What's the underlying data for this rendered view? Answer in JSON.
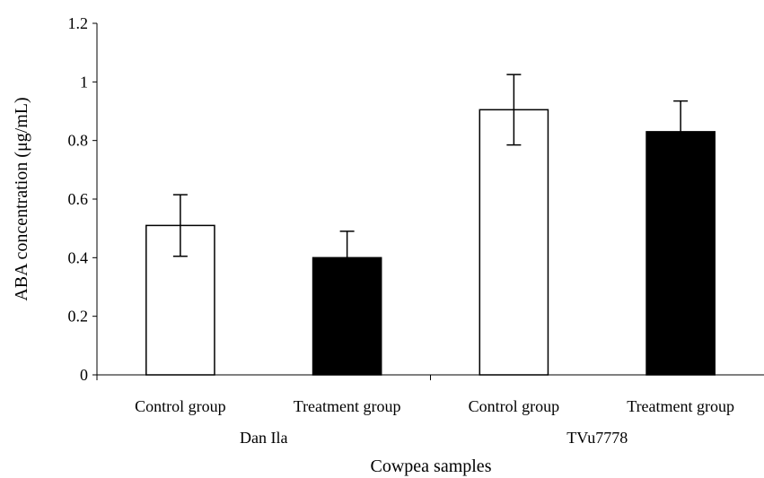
{
  "chart_data": {
    "type": "bar",
    "xlabel": "Cowpea samples",
    "ylabel": "ABA concentration (μg/mL)",
    "ylim": [
      0,
      1.2
    ],
    "yticks": [
      {
        "value": 0,
        "label": "0"
      },
      {
        "value": 0.2,
        "label": "0.2"
      },
      {
        "value": 0.4,
        "label": "0.4"
      },
      {
        "value": 0.6,
        "label": "0.6"
      },
      {
        "value": 0.8,
        "label": "0.8"
      },
      {
        "value": 1.0,
        "label": "1"
      },
      {
        "value": 1.2,
        "label": "1.2"
      }
    ],
    "groups": [
      "Dan Ila",
      "TVu7778"
    ],
    "categories": [
      "Control group",
      "Treatment group",
      "Control group",
      "Treatment group"
    ],
    "bars": [
      {
        "group": 0,
        "category": "Control group",
        "value": 0.51,
        "error": 0.105,
        "fill": "#ffffff"
      },
      {
        "group": 0,
        "category": "Treatment group",
        "value": 0.4,
        "error": 0.09,
        "fill": "#000000"
      },
      {
        "group": 1,
        "category": "Control group",
        "value": 0.905,
        "error": 0.12,
        "fill": "#ffffff"
      },
      {
        "group": 1,
        "category": "Treatment group",
        "value": 0.83,
        "error": 0.105,
        "fill": "#000000"
      }
    ],
    "grid": false,
    "legend": "none"
  }
}
